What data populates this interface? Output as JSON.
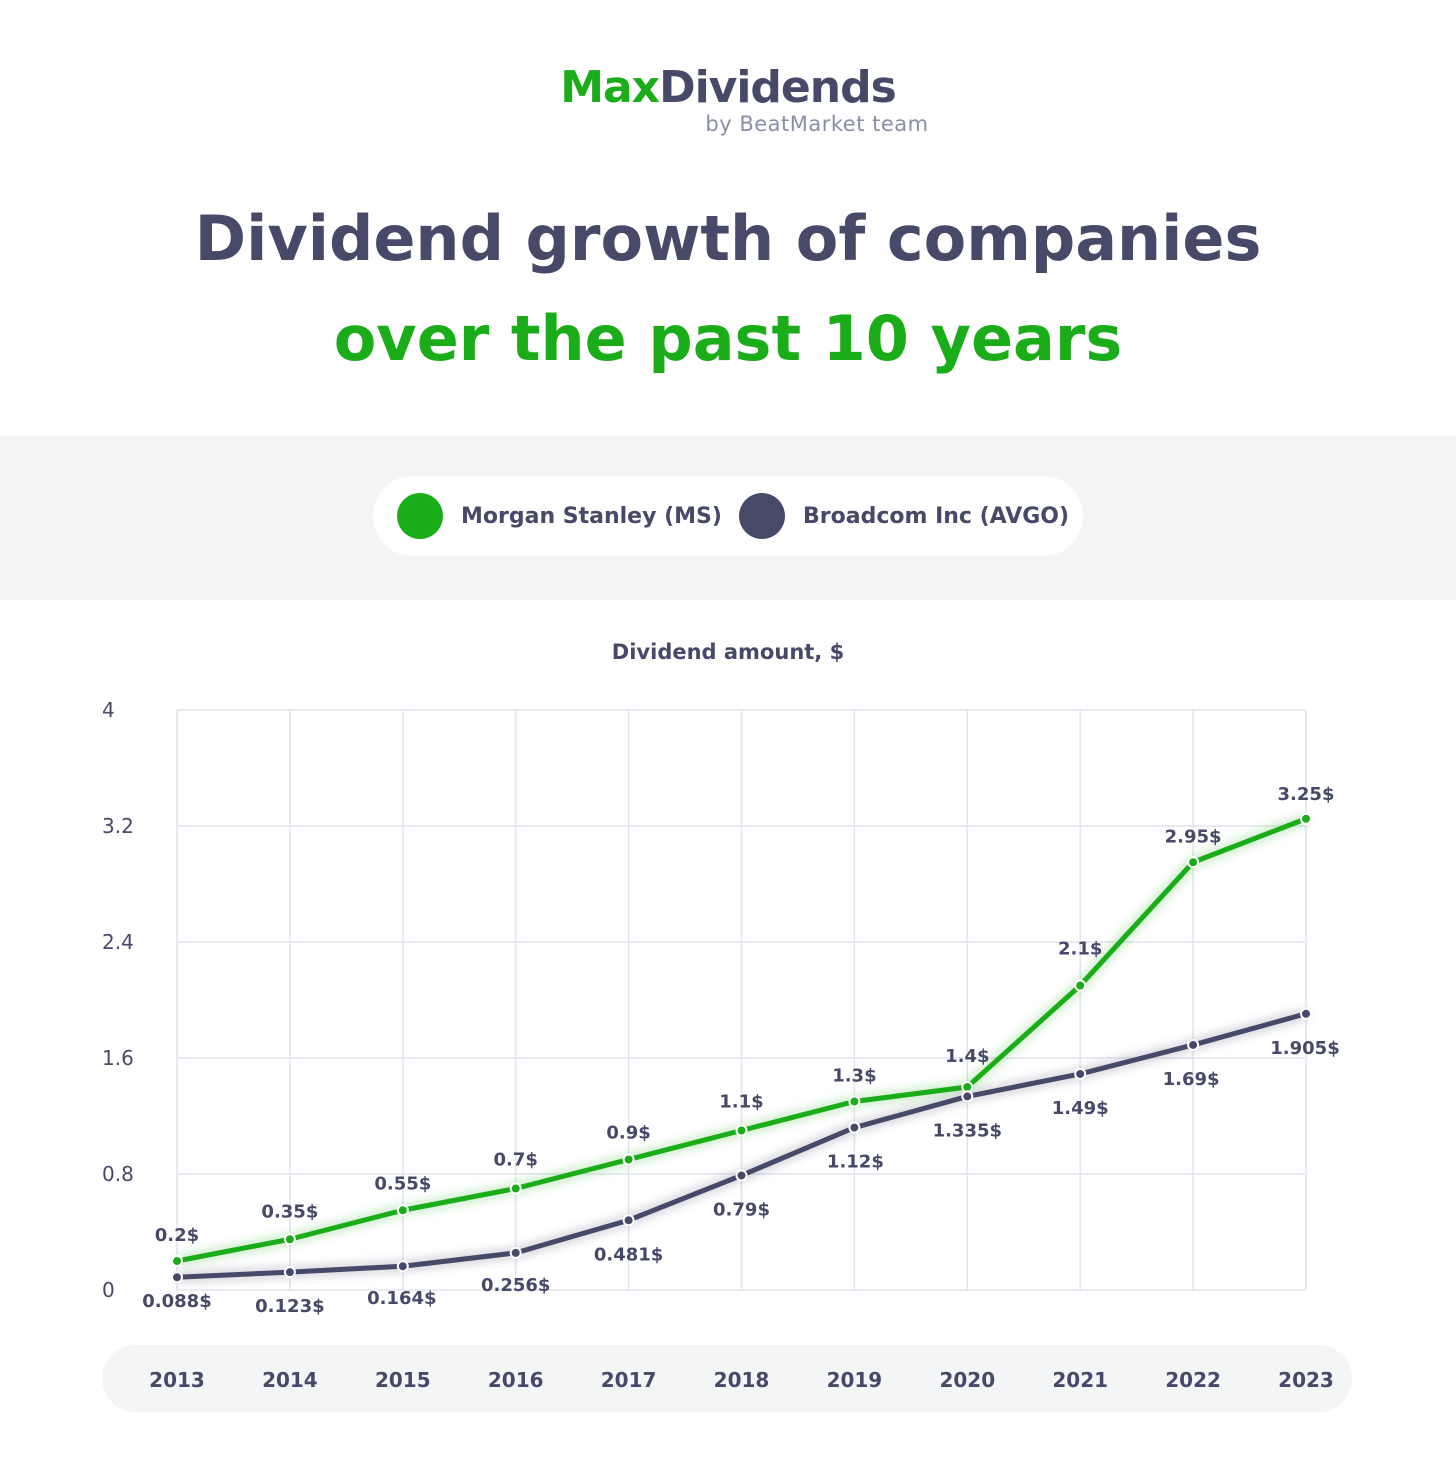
{
  "brand": {
    "name_part1": "Max",
    "name_part2": "Dividends",
    "tagline": "by BeatMarket team"
  },
  "heading": {
    "line1": "Dividend growth of companies",
    "line2": "over the past 10 years"
  },
  "colors": {
    "green": "#1aad19",
    "dark": "#464a68",
    "grid": "#e3e4ef"
  },
  "chart_data": {
    "type": "line",
    "ylabel": "Dividend amount, $",
    "ylim": [
      0,
      4
    ],
    "yticks": [
      "0",
      "0.8",
      "1.6",
      "2.4",
      "3.2",
      "4"
    ],
    "grid": true,
    "legend_placement": "top-center",
    "categories": [
      "2013",
      "2014",
      "2015",
      "2016",
      "2017",
      "2018",
      "2019",
      "2020",
      "2021",
      "2022",
      "2023"
    ],
    "series": [
      {
        "name": "Morgan Stanley (MS)",
        "color": "#1aad19",
        "values": [
          0.2,
          0.35,
          0.55,
          0.7,
          0.9,
          1.1,
          1.3,
          1.4,
          2.1,
          2.95,
          3.25
        ],
        "labels": [
          "0.2$",
          "0.35$",
          "0.55$",
          "0.7$",
          "0.9$",
          "1.1$",
          "1.3$",
          "1.4$",
          "2.1$",
          "2.95$",
          "3.25$"
        ]
      },
      {
        "name": "Broadcom Inc (AVGO)",
        "color": "#464a68",
        "values": [
          0.088,
          0.123,
          0.164,
          0.256,
          0.481,
          0.79,
          1.12,
          1.335,
          1.49,
          1.69,
          1.905
        ],
        "labels": [
          "0.088$",
          "0.123$",
          "0.164$",
          "0.256$",
          "0.481$",
          "0.79$",
          "1.12$",
          "1.335$",
          "1.49$",
          "1.69$",
          "1.905$"
        ]
      }
    ]
  }
}
